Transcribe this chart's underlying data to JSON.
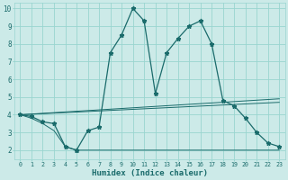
{
  "xlabel": "Humidex (Indice chaleur)",
  "bg_color": "#cceae8",
  "grid_color": "#99d5d0",
  "line_color": "#1a6b6b",
  "xlim": [
    -0.5,
    23.5
  ],
  "ylim": [
    1.5,
    10.3
  ],
  "yticks": [
    2,
    3,
    4,
    5,
    6,
    7,
    8,
    9,
    10
  ],
  "xticks": [
    0,
    1,
    2,
    3,
    4,
    5,
    6,
    7,
    8,
    9,
    10,
    11,
    12,
    13,
    14,
    15,
    16,
    17,
    18,
    19,
    20,
    21,
    22,
    23
  ],
  "line1_x": [
    0,
    1,
    2,
    3,
    4,
    5,
    5,
    6,
    7,
    8,
    9,
    10,
    11,
    12,
    13,
    14,
    15,
    16,
    17,
    18,
    19,
    20,
    21,
    22,
    23
  ],
  "line1_y": [
    4.0,
    3.9,
    3.6,
    3.5,
    2.2,
    2.0,
    2.0,
    3.1,
    3.3,
    7.5,
    8.5,
    10.0,
    9.3,
    5.2,
    7.5,
    8.3,
    9.0,
    9.3,
    8.0,
    4.8,
    4.5,
    3.8,
    3.0,
    2.4,
    2.2
  ],
  "line2_x": [
    0,
    1,
    2,
    3,
    4,
    5,
    6,
    7,
    8,
    9,
    10,
    11,
    12,
    13,
    14,
    15,
    16,
    17,
    18,
    19,
    20,
    21,
    22,
    23
  ],
  "line2_y": [
    4.0,
    3.8,
    3.5,
    3.1,
    2.2,
    2.0,
    2.0,
    2.0,
    2.0,
    2.0,
    2.0,
    2.0,
    2.0,
    2.0,
    2.0,
    2.0,
    2.0,
    2.0,
    2.0,
    2.0,
    2.0,
    2.0,
    2.0,
    2.0
  ],
  "line3_x": [
    0,
    23
  ],
  "line3_y": [
    4.0,
    4.9
  ],
  "line4_x": [
    0,
    23
  ],
  "line4_y": [
    4.0,
    4.7
  ]
}
